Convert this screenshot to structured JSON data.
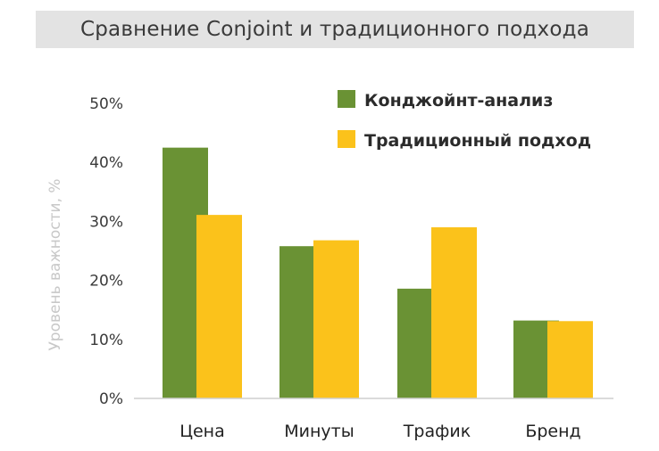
{
  "chart_data": {
    "type": "bar",
    "title": "Сравнение Conjoint и традиционного подхода",
    "ylabel": "Уровень важности, %",
    "xlabel": "",
    "categories": [
      "Цена",
      "Минуты",
      "Трафик",
      "Бренд"
    ],
    "series": [
      {
        "name": "Конджойнт-анализ",
        "color": "#6a9234",
        "values": [
          42.5,
          25.8,
          18.6,
          13.2
        ]
      },
      {
        "name": "Традиционный подход",
        "color": "#fbc21b",
        "values": [
          31.1,
          26.8,
          29.0,
          13.1
        ]
      }
    ],
    "ylim": [
      0,
      50
    ],
    "yticks": [
      0,
      10,
      20,
      30,
      40,
      50
    ],
    "ytick_labels": [
      "0%",
      "10%",
      "20%",
      "30%",
      "40%",
      "50%"
    ],
    "grid": false,
    "legend_position": "top-right"
  }
}
